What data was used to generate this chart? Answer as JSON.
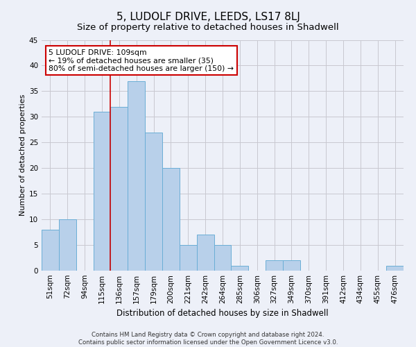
{
  "title": "5, LUDOLF DRIVE, LEEDS, LS17 8LJ",
  "subtitle": "Size of property relative to detached houses in Shadwell",
  "xlabel": "Distribution of detached houses by size in Shadwell",
  "ylabel": "Number of detached properties",
  "footer_line1": "Contains HM Land Registry data © Crown copyright and database right 2024.",
  "footer_line2": "Contains public sector information licensed under the Open Government Licence v3.0.",
  "categories": [
    "51sqm",
    "72sqm",
    "94sqm",
    "115sqm",
    "136sqm",
    "157sqm",
    "179sqm",
    "200sqm",
    "221sqm",
    "242sqm",
    "264sqm",
    "285sqm",
    "306sqm",
    "327sqm",
    "349sqm",
    "370sqm",
    "391sqm",
    "412sqm",
    "434sqm",
    "455sqm",
    "476sqm"
  ],
  "values": [
    8,
    10,
    0,
    31,
    32,
    37,
    27,
    20,
    5,
    7,
    5,
    1,
    0,
    2,
    2,
    0,
    0,
    0,
    0,
    0,
    1
  ],
  "bar_color": "#b8d0ea",
  "bar_edge_color": "#6aaed6",
  "annotation_line1": "5 LUDOLF DRIVE: 109sqm",
  "annotation_line2": "← 19% of detached houses are smaller (35)",
  "annotation_line3": "80% of semi-detached houses are larger (150) →",
  "vline_x_index": 3.5,
  "vline_color": "#cc0000",
  "ylim": [
    0,
    45
  ],
  "yticks": [
    0,
    5,
    10,
    15,
    20,
    25,
    30,
    35,
    40,
    45
  ],
  "grid_color": "#c8c8d0",
  "background_color": "#edf0f8",
  "annotation_box_facecolor": "#ffffff",
  "annotation_box_edgecolor": "#cc0000",
  "title_fontsize": 11,
  "subtitle_fontsize": 9.5,
  "xlabel_fontsize": 8.5,
  "ylabel_fontsize": 8,
  "tick_fontsize": 7.5,
  "annotation_fontsize": 7.8,
  "footer_fontsize": 6.2
}
